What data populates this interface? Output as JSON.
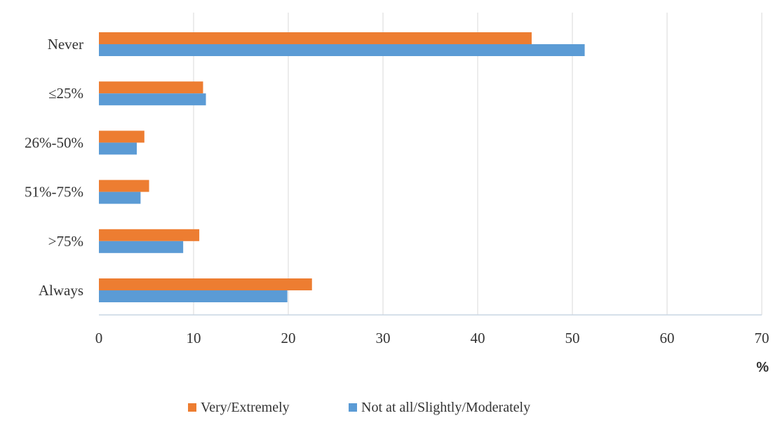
{
  "chart_data": {
    "type": "bar",
    "orientation": "horizontal",
    "categories": [
      "Never",
      "≤25%",
      "26%-50%",
      "51%-75%",
      ">75%",
      "Always"
    ],
    "series": [
      {
        "name": "Very/Extremely",
        "color": "#ED7D31",
        "values": [
          45.7,
          11.0,
          4.8,
          5.3,
          10.6,
          22.5
        ]
      },
      {
        "name": "Not at all/Slightly/Moderately",
        "color": "#5B9BD5",
        "values": [
          51.3,
          11.3,
          4.0,
          4.4,
          8.9,
          19.9
        ]
      }
    ],
    "xlim": [
      0,
      70
    ],
    "xticks": [
      0,
      10,
      20,
      30,
      40,
      50,
      60,
      70
    ],
    "xlabel": "%",
    "grid": true,
    "legend_position": "bottom"
  }
}
